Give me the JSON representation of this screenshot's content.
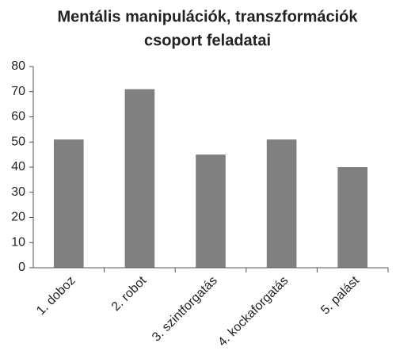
{
  "chart_data": {
    "type": "bar",
    "title": [
      "Mentális manipulációk, transzformációk",
      "csoport feladatai"
    ],
    "categories": [
      "1. doboz",
      "2. robot",
      "3. szintforgatás",
      "4. kockaforgatás",
      "5. palást"
    ],
    "values": [
      51,
      71,
      45,
      51,
      40
    ],
    "color": "#808080",
    "ylim": [
      0,
      80
    ],
    "yticks": [
      0,
      10,
      20,
      30,
      40,
      50,
      60,
      70,
      80
    ],
    "grid": false
  }
}
